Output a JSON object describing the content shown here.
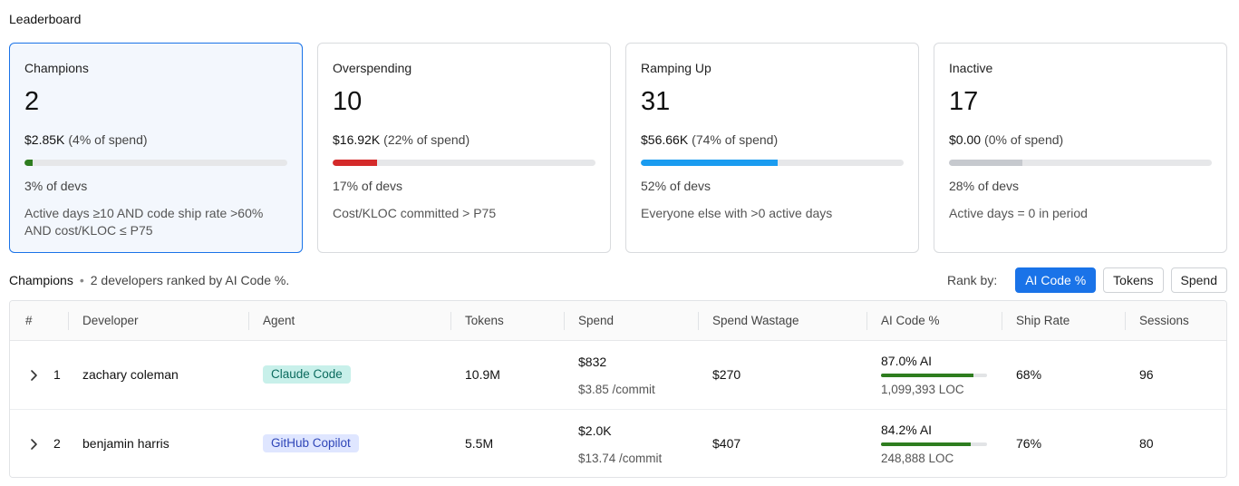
{
  "page": {
    "title": "Leaderboard"
  },
  "cards": [
    {
      "label": "Champions",
      "count": "2",
      "spend": "$2.85K",
      "spend_pct": "(4% of spend)",
      "bar_fraction": 0.03,
      "bar_color": "#2e7d1f",
      "devs": "3% of devs",
      "description": "Active days ≥10 AND code ship rate >60% AND cost/KLOC ≤ P75",
      "selected": true
    },
    {
      "label": "Overspending",
      "count": "10",
      "spend": "$16.92K",
      "spend_pct": "(22% of spend)",
      "bar_fraction": 0.17,
      "bar_color": "#d42a2a",
      "devs": "17% of devs",
      "description": "Cost/KLOC committed > P75",
      "selected": false
    },
    {
      "label": "Ramping Up",
      "count": "31",
      "spend": "$56.66K",
      "spend_pct": "(74% of spend)",
      "bar_fraction": 0.52,
      "bar_color": "#1a9cf0",
      "devs": "52% of devs",
      "description": "Everyone else with >0 active days",
      "selected": false
    },
    {
      "label": "Inactive",
      "count": "17",
      "spend": "$0.00",
      "spend_pct": "(0% of spend)",
      "bar_fraction": 0.28,
      "bar_color": "#c6c9ce",
      "devs": "28% of devs",
      "description": "Active days = 0 in period",
      "selected": false
    }
  ],
  "subheader": {
    "segment": "Champions",
    "separator": "•",
    "description": "2 developers ranked by AI Code %."
  },
  "rank_by": {
    "label": "Rank by:",
    "options": [
      "AI Code %",
      "Tokens",
      "Spend"
    ],
    "active": "AI Code %"
  },
  "table": {
    "columns": [
      "#",
      "Developer",
      "Agent",
      "Tokens",
      "Spend",
      "Spend Wastage",
      "AI Code %",
      "Ship Rate",
      "Sessions"
    ],
    "rows": [
      {
        "rank": "1",
        "developer": "zachary coleman",
        "agent": "Claude Code",
        "agent_bg": "#c8f0ea",
        "agent_fg": "#0b6b5e",
        "tokens": "10.9M",
        "spend": "$832",
        "spend_per_commit": "$3.85 /commit",
        "wastage": "$270",
        "ai_pct": "87.0% AI",
        "ai_fraction": 0.87,
        "loc": "1,099,393 LOC",
        "ship_rate": "68%",
        "sessions": "96"
      },
      {
        "rank": "2",
        "developer": "benjamin harris",
        "agent": "GitHub Copilot",
        "agent_bg": "#dfe6ff",
        "agent_fg": "#2f46b8",
        "tokens": "5.5M",
        "spend": "$2.0K",
        "spend_per_commit": "$13.74 /commit",
        "wastage": "$407",
        "ai_pct": "84.2% AI",
        "ai_fraction": 0.842,
        "loc": "248,888 LOC",
        "ship_rate": "76%",
        "sessions": "80"
      }
    ]
  },
  "icons": {
    "expand": "chevron-right-icon"
  }
}
